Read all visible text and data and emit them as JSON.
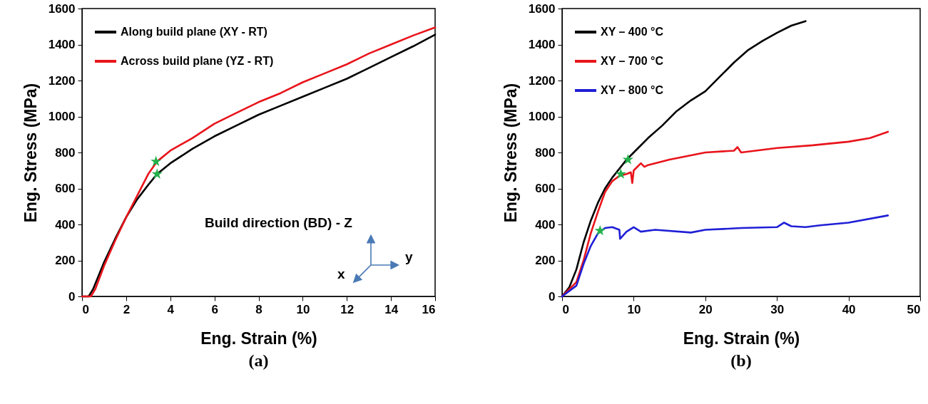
{
  "chart_data": [
    {
      "type": "line",
      "title": "(a)",
      "xlabel": "Eng. Strain (%)",
      "ylabel": "Eng. Stress (MPa)",
      "xlim": [
        0,
        16
      ],
      "ylim": [
        0,
        1600
      ],
      "xticks": [
        0,
        2,
        4,
        6,
        8,
        10,
        12,
        14,
        16
      ],
      "yticks": [
        0,
        200,
        400,
        600,
        800,
        1000,
        1200,
        1400,
        1600
      ],
      "grid": false,
      "legend": "top left",
      "annotations": [
        "Build direction (BD) - Z",
        "x",
        "y"
      ],
      "series": [
        {
          "name": "Along build plane (XY - RT)",
          "color": "#000000",
          "x": [
            0,
            0.3,
            0.5,
            1,
            1.5,
            2,
            2.5,
            3,
            3.4,
            4,
            5,
            6,
            7,
            8,
            9,
            10,
            11,
            12,
            13,
            14,
            15,
            16
          ],
          "values": [
            0,
            0,
            40,
            190,
            320,
            440,
            540,
            620,
            680,
            740,
            820,
            890,
            950,
            1010,
            1060,
            1110,
            1160,
            1210,
            1270,
            1330,
            1390,
            1455
          ]
        },
        {
          "name": "Across build plane (YZ - RT)",
          "color": "#e8141b",
          "x": [
            0,
            0.4,
            0.6,
            1,
            1.5,
            2,
            2.5,
            3,
            3.4,
            4,
            5,
            6,
            7,
            8,
            9,
            10,
            11,
            12,
            13,
            14,
            15,
            16
          ],
          "values": [
            0,
            0,
            40,
            170,
            310,
            440,
            560,
            680,
            750,
            810,
            880,
            960,
            1020,
            1080,
            1130,
            1190,
            1240,
            1290,
            1350,
            1400,
            1450,
            1495
          ]
        },
        {
          "type": "scatter",
          "marker": "star",
          "color": "#22b04b",
          "x": [
            3.35,
            3.4
          ],
          "values": [
            750,
            680
          ]
        }
      ]
    },
    {
      "type": "line",
      "title": "(b)",
      "xlabel": "Eng. Strain (%)",
      "ylabel": "Eng. Stress (MPa)",
      "xlim": [
        0,
        50
      ],
      "ylim": [
        0,
        1600
      ],
      "xticks": [
        0,
        10,
        20,
        30,
        40,
        50
      ],
      "yticks": [
        0,
        200,
        400,
        600,
        800,
        1000,
        1200,
        1400,
        1600
      ],
      "grid": false,
      "legend": "top left",
      "series": [
        {
          "name": "XY – 400 °C",
          "color": "#000000",
          "x": [
            0,
            1,
            2,
            3,
            4,
            5,
            6,
            7,
            8,
            9,
            10,
            12,
            14,
            16,
            18,
            20,
            22,
            24,
            26,
            28,
            30,
            32,
            34
          ],
          "values": [
            0,
            50,
            150,
            300,
            420,
            520,
            600,
            660,
            710,
            760,
            800,
            880,
            950,
            1030,
            1090,
            1140,
            1220,
            1300,
            1370,
            1420,
            1465,
            1505,
            1530
          ]
        },
        {
          "name": "XY – 700 °C",
          "color": "#e8141b",
          "x": [
            0,
            2,
            3,
            4,
            5,
            6,
            7,
            8,
            9,
            9.6,
            9.8,
            10,
            11,
            11.5,
            12,
            15,
            20,
            24,
            24.5,
            25,
            30,
            35,
            40,
            43,
            45.5
          ],
          "values": [
            0,
            80,
            200,
            350,
            470,
            580,
            640,
            670,
            680,
            690,
            630,
            700,
            740,
            720,
            730,
            760,
            800,
            810,
            830,
            800,
            825,
            840,
            860,
            880,
            915
          ]
        },
        {
          "name": "XY – 800 °C",
          "color": "#1f1fd6",
          "x": [
            0,
            2,
            3,
            4,
            5,
            6,
            7,
            8,
            8.1,
            9,
            10,
            11,
            13,
            18,
            20,
            25,
            30,
            31,
            32,
            34,
            36,
            40,
            45.5
          ],
          "values": [
            0,
            60,
            180,
            280,
            350,
            380,
            385,
            370,
            320,
            360,
            385,
            360,
            370,
            355,
            370,
            380,
            385,
            410,
            390,
            385,
            395,
            410,
            450
          ]
        },
        {
          "type": "scatter",
          "marker": "star",
          "color": "#22b04b",
          "x": [
            5.3,
            8.2,
            9.2
          ],
          "values": [
            365,
            680,
            760
          ]
        }
      ]
    }
  ]
}
